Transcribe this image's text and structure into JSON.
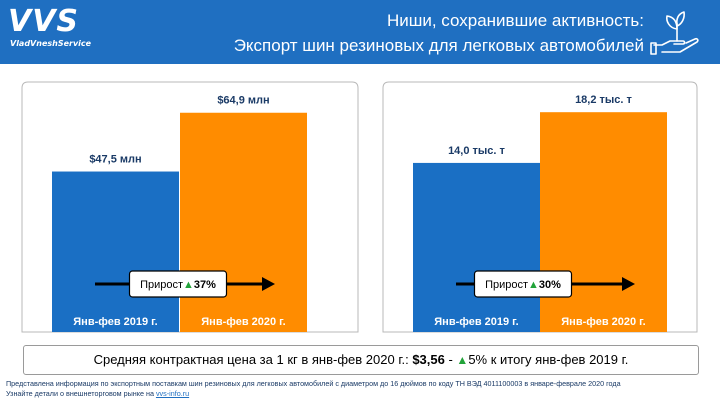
{
  "brand": {
    "name": "VVS",
    "tagline": "VladVneshService"
  },
  "header": {
    "title_line1": "Ниши, сохранившие активность:",
    "title_line2": "Экспорт шин резиновых для легковых автомобилей",
    "icon": "plant-in-hand-icon"
  },
  "colors": {
    "header": "#1f6fc1",
    "bar_2019": "#1a6fc4",
    "bar_2020": "#ff8c00",
    "growth": "#22a33a",
    "value_label": "#1a3a66"
  },
  "chart_data": [
    {
      "type": "bar",
      "categories": [
        "Янв-фев 2019 г.",
        "Янв-фев 2020 г."
      ],
      "values": [
        47.5,
        64.9
      ],
      "value_labels": [
        "$47,5 млн",
        "$64,9 млн"
      ],
      "unit": "$ млн",
      "ylim": [
        0,
        74
      ],
      "growth_label": "Прирост",
      "growth_value": "37%"
    },
    {
      "type": "bar",
      "categories": [
        "Янв-фев 2019 г.",
        "Янв-фев 2020 г."
      ],
      "values": [
        14.0,
        18.2
      ],
      "value_labels": [
        "14,0 тыс. т",
        "18,2 тыс. т"
      ],
      "unit": "тыс. т",
      "ylim": [
        0,
        20.7
      ],
      "growth_label": "Прирост",
      "growth_value": "30%"
    }
  ],
  "summary": {
    "text_before": "Средняя контрактная цена за 1 кг в янв-фев 2020 г.: ",
    "price": "$3,56",
    "separator": " - ",
    "change": "5%",
    "text_after": " к итогу янв-фев 2019 г."
  },
  "footer": {
    "line1": "Представлена информация по экспортным поставкам шин резиновых для легковых автомобилей с диаметром до 16 дюймов по коду ТН ВЭД 4011100003 в январе-феврале 2020 года",
    "line2_prefix": "Узнайте детали о внешнеторговом рынке на ",
    "link": "vvs-info.ru"
  }
}
